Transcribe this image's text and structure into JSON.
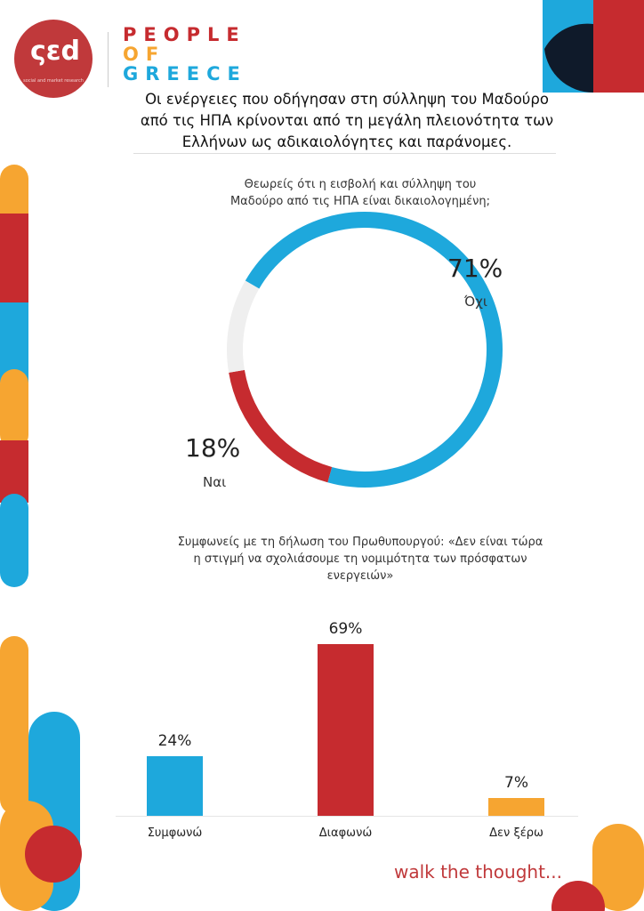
{
  "logo": {
    "mark": "ςεd",
    "subtitle": "social and market research",
    "brand_lines": [
      "PEOPLE",
      "OF",
      "GREECE"
    ]
  },
  "headline": "Οι ενέργειες που οδήγησαν στη σύλληψη του Μαδούρο από τις ΗΠΑ κρίνονται από τη μεγάλη πλειονότητα των Ελλήνων ως αδικαιολόγητες και παράνομες.",
  "tagline": "walk the thought...",
  "colors": {
    "blue": "#1ea8dc",
    "red": "#c62b2f",
    "orange": "#f6a531",
    "gray": "#efefef",
    "navy": "#0f1a2a"
  },
  "chart_data": [
    {
      "type": "pie",
      "variant": "donut",
      "question": "Θεωρείς ότι η εισβολή και σύλληψη του Μαδούρο από τις ΗΠΑ είναι δικαιολογημένη;",
      "slices": [
        {
          "label": "Όχι",
          "value": 71,
          "display": "71%",
          "color": "#1ea8dc"
        },
        {
          "label": "Ναι",
          "value": 18,
          "display": "18%",
          "color": "#c62b2f"
        },
        {
          "label": "",
          "value": 11,
          "color": "#efefef"
        }
      ]
    },
    {
      "type": "bar",
      "question": "Συμφωνείς με τη δήλωση του Πρωθυπουργού: «Δεν είναι τώρα η στιγμή να σχολιάσουμε τη νομιμότητα των πρόσφατων ενεργειών»",
      "categories": [
        "Συμφωνώ",
        "Διαφωνώ",
        "Δεν ξέρω"
      ],
      "values": [
        24,
        69,
        7
      ],
      "labels": [
        "24%",
        "69%",
        "7%"
      ],
      "colors": [
        "#1ea8dc",
        "#c62b2f",
        "#f6a531"
      ],
      "ylim": [
        0,
        100
      ]
    }
  ]
}
